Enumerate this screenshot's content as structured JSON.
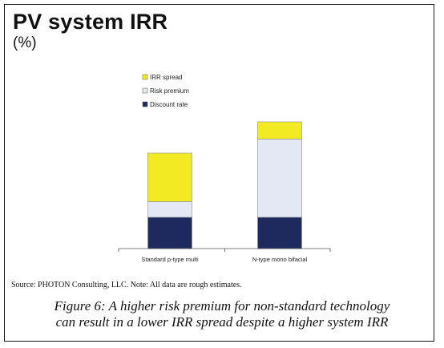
{
  "title": "PV system IRR",
  "unit": "(%)",
  "source": "Source: PHOTON Consulting, LLC. Note: All data are rough estimates.",
  "caption": {
    "line1": "Figure 6: A higher risk premium for non-standard technology",
    "line2": "can result in a lower IRR spread despite a higher system IRR"
  },
  "chart_data": {
    "type": "bar",
    "stacked": true,
    "categories": [
      "Standard p-type multi",
      "N-type mono bifacial"
    ],
    "series": [
      {
        "name": "Discount rate",
        "values": [
          2.0,
          2.0
        ],
        "color": "#1e2a5e"
      },
      {
        "name": "Risk premium",
        "values": [
          1.0,
          5.0
        ],
        "color": "#e3e8f4"
      },
      {
        "name": "IRR spread",
        "values": [
          3.1,
          1.1
        ],
        "color": "#f2ea22"
      }
    ],
    "legend_order": [
      "IRR spread",
      "Risk premium",
      "Discount rate"
    ],
    "legend_position": "top-left",
    "ylim": [
      0,
      8.2
    ],
    "y_axis_visible": false,
    "grid": false
  }
}
